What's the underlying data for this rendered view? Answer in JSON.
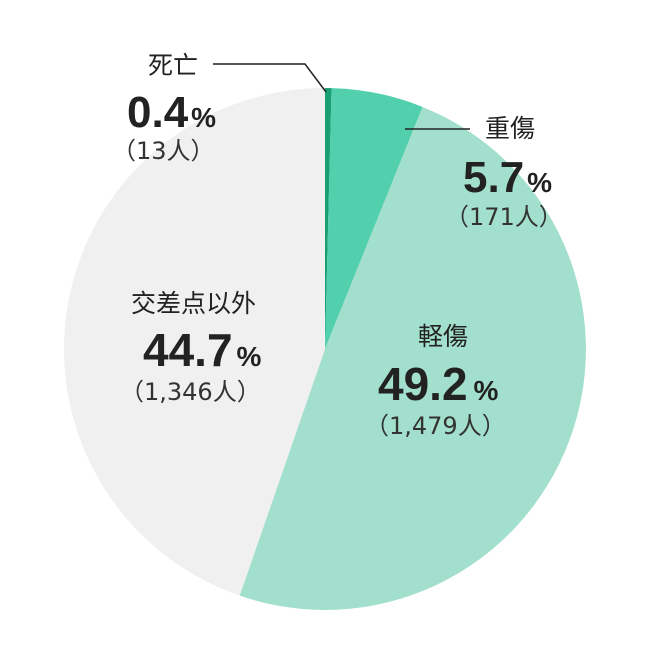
{
  "chart_data": {
    "type": "pie",
    "start": "top",
    "direction": "clockwise",
    "slices": [
      {
        "label": "死亡",
        "value": 0.4,
        "percent": "0.4",
        "count": "（13人）",
        "color": "#1a9e74"
      },
      {
        "label": "重傷",
        "value": 5.7,
        "percent": "5.7",
        "count": "（171人）",
        "color": "#52cfac"
      },
      {
        "label": "軽傷",
        "value": 49.2,
        "percent": "49.2",
        "count": "（1,479人）",
        "color": "#a2dfcc"
      },
      {
        "label": "交差点以外",
        "value": 44.7,
        "percent": "44.7",
        "count": "（1,346人）",
        "color": "#f0f0f0"
      }
    ],
    "percent_unit": "%"
  }
}
